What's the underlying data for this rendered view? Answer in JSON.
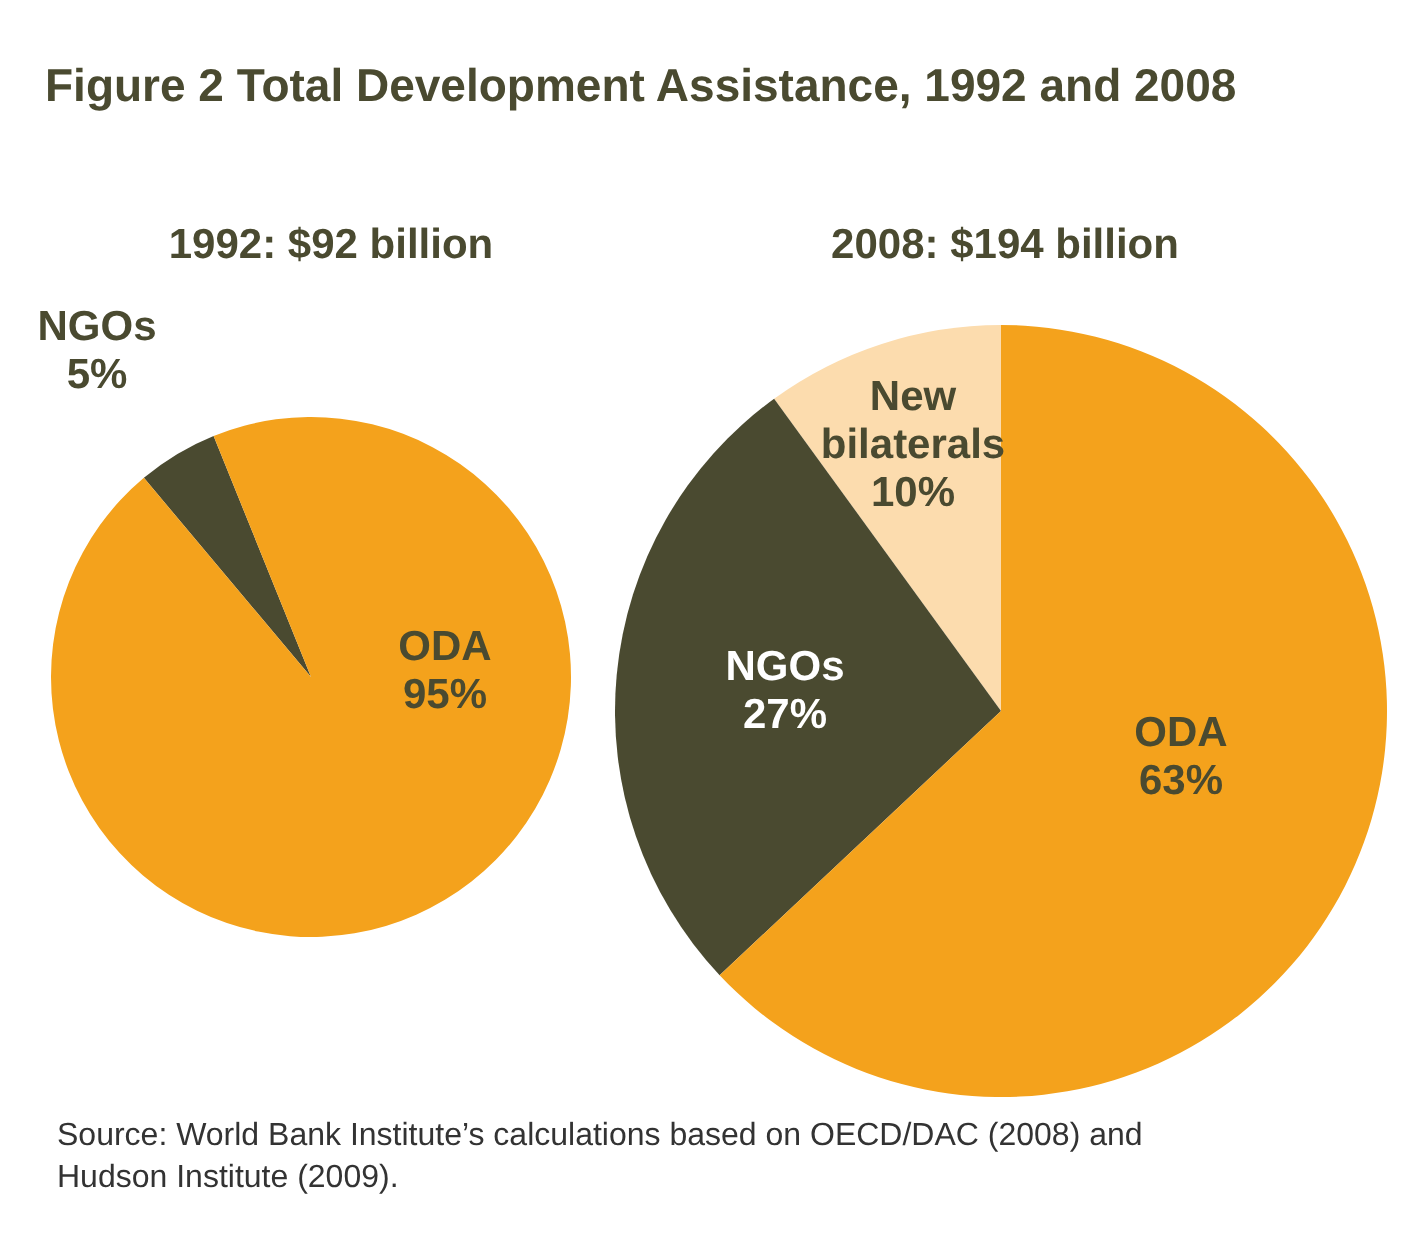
{
  "chart_data": [
    {
      "type": "other",
      "title": "Figure 2  Total Development Assistance, 1992 and 2008",
      "annotations": [
        "Source: World Bank Institute’s calculations based on OECD/DAC (2008) and Hudson Institute (2009)."
      ]
    },
    {
      "type": "pie",
      "title": "1992: $92 billion",
      "categories": [
        "ODA",
        "NGOs"
      ],
      "values": [
        95,
        5
      ],
      "value_labels": [
        "95%",
        "5%"
      ],
      "colors": [
        "#f4a21c",
        "#4a4a30"
      ]
    },
    {
      "type": "pie",
      "title": "2008: $194 billion",
      "categories": [
        "ODA",
        "NGOs",
        "New bilaterals"
      ],
      "values": [
        63,
        27,
        10
      ],
      "value_labels": [
        "63%",
        "27%",
        "10%"
      ],
      "colors": [
        "#f4a21c",
        "#4a4a30",
        "#fcdcae"
      ]
    }
  ]
}
